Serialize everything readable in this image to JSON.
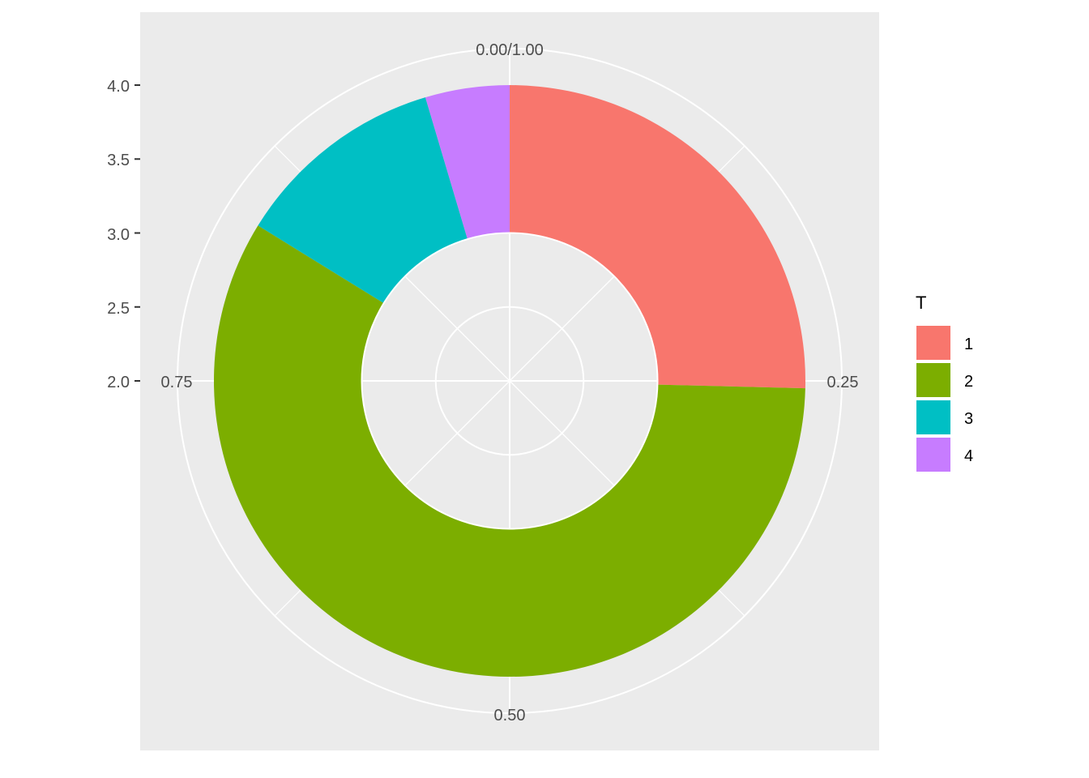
{
  "chart_data": {
    "type": "pie",
    "subtype": "donut (coord_polar)",
    "categories": [
      "1",
      "2",
      "3",
      "4"
    ],
    "values": [
      0.254,
      0.584,
      0.116,
      0.046
    ],
    "colors": [
      "#F8766D",
      "#7CAE00",
      "#00BFC4",
      "#C77CFF"
    ],
    "ring_r": [
      3,
      4
    ],
    "r_lim": [
      2,
      4
    ],
    "r_ticks": [
      "2.0",
      "2.5",
      "3.0",
      "3.5",
      "4.0"
    ],
    "theta_ticks": [
      "0.00/1.00",
      "0.25",
      "0.50",
      "0.75"
    ],
    "legend_title": "T",
    "legend_position": "right",
    "panel_background": "#EBEBEB",
    "grid": true
  }
}
